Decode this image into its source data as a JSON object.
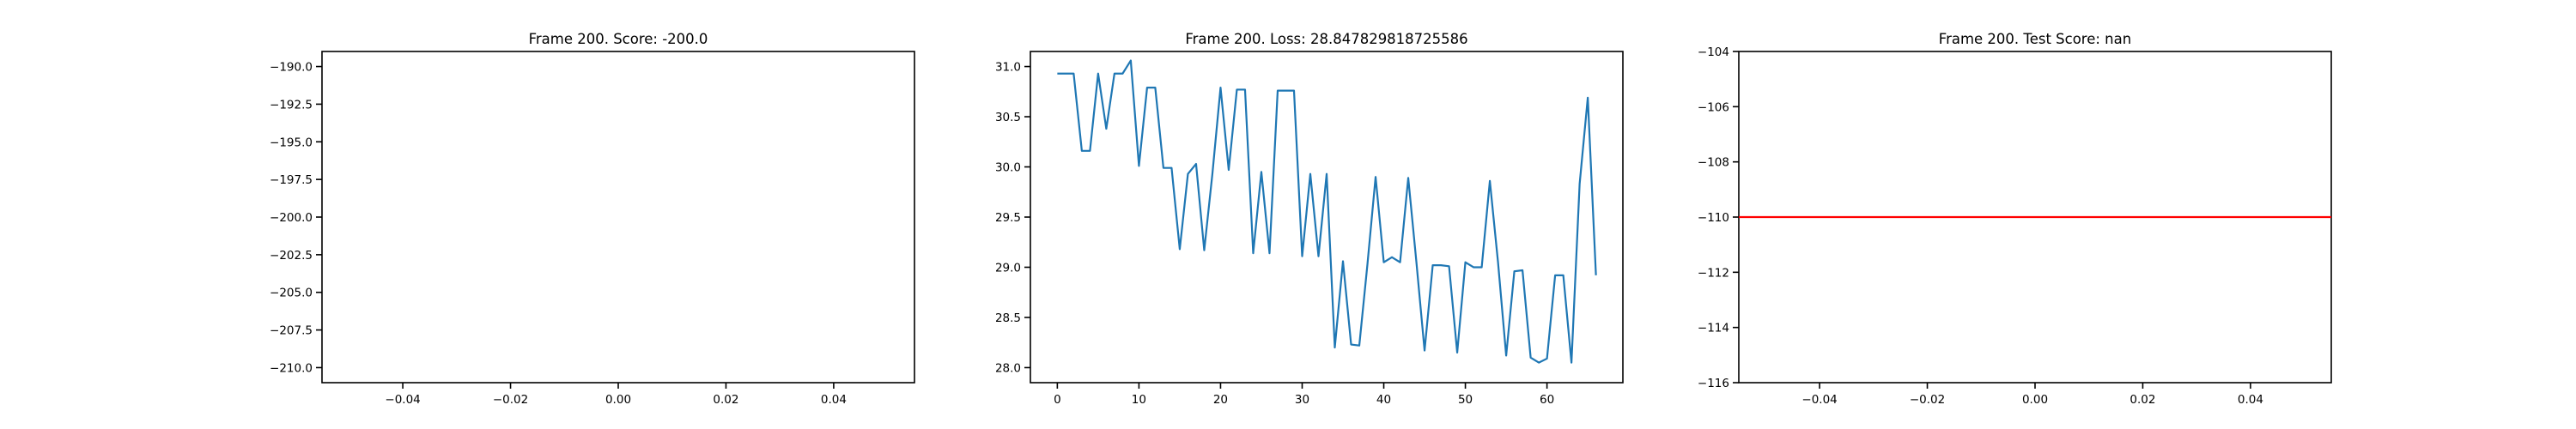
{
  "chart_data": [
    {
      "type": "line",
      "title": "Frame 200. Score: -200.0",
      "xlabel": "",
      "ylabel": "",
      "xlim": [
        -0.055,
        0.055
      ],
      "ylim": [
        -211.0,
        -189.0
      ],
      "x_ticks": [
        -0.04,
        -0.02,
        0.0,
        0.02,
        0.04
      ],
      "x_tick_labels": [
        "−0.04",
        "−0.02",
        "0.00",
        "0.02",
        "0.04"
      ],
      "y_ticks": [
        -190.0,
        -192.5,
        -195.0,
        -197.5,
        -200.0,
        -202.5,
        -205.0,
        -207.5,
        -210.0
      ],
      "y_tick_labels": [
        "−190.0",
        "−192.5",
        "−195.0",
        "−197.5",
        "−200.0",
        "−202.5",
        "−205.0",
        "−207.5",
        "−210.0"
      ],
      "series": [
        {
          "x": [],
          "y": [],
          "color": "#1f77b4"
        }
      ],
      "hlines": [],
      "grid": false
    },
    {
      "type": "line",
      "title": "Frame 200. Loss: 28.847829818725586",
      "xlabel": "",
      "ylabel": "",
      "xlim": [
        -3.3,
        69.3
      ],
      "ylim": [
        27.85,
        31.15
      ],
      "x_ticks": [
        0,
        10,
        20,
        30,
        40,
        50,
        60
      ],
      "x_tick_labels": [
        "0",
        "10",
        "20",
        "30",
        "40",
        "50",
        "60"
      ],
      "y_ticks": [
        31.0,
        30.5,
        30.0,
        29.5,
        29.0,
        28.5,
        28.0
      ],
      "y_tick_labels": [
        "31.0",
        "30.5",
        "30.0",
        "29.5",
        "29.0",
        "28.5",
        "28.0"
      ],
      "series": [
        {
          "x": [
            0,
            1,
            2,
            3,
            4,
            5,
            6,
            7,
            8,
            9,
            10,
            11,
            12,
            13,
            14,
            15,
            16,
            17,
            18,
            19,
            20,
            21,
            22,
            23,
            24,
            25,
            26,
            27,
            28,
            29,
            30,
            31,
            32,
            33,
            34,
            35,
            36,
            37,
            38,
            39,
            40,
            41,
            42,
            43,
            44,
            45,
            46,
            47,
            48,
            49,
            50,
            51,
            52,
            53,
            54,
            55,
            56,
            57,
            58,
            59,
            60,
            61,
            62,
            63,
            64,
            65,
            66
          ],
          "y": [
            30.93,
            30.93,
            30.93,
            30.16,
            30.16,
            30.93,
            30.38,
            30.93,
            30.93,
            31.06,
            30.01,
            30.79,
            30.79,
            29.99,
            29.99,
            29.18,
            29.93,
            30.03,
            29.17,
            29.93,
            30.79,
            29.97,
            30.77,
            30.77,
            29.14,
            29.95,
            29.14,
            30.76,
            30.76,
            30.76,
            29.11,
            29.93,
            29.11,
            29.93,
            28.2,
            29.06,
            28.23,
            28.22,
            29.03,
            29.9,
            29.05,
            29.1,
            29.05,
            29.89,
            29.05,
            28.17,
            29.02,
            29.02,
            29.01,
            28.15,
            29.05,
            29.0,
            29.0,
            29.86,
            29.05,
            28.12,
            28.96,
            28.97,
            28.1,
            28.05,
            28.09,
            28.92,
            28.92,
            28.05,
            29.83,
            30.69,
            28.92
          ],
          "color": "#1f77b4"
        }
      ],
      "hlines": [],
      "grid": false
    },
    {
      "type": "line",
      "title": "Frame 200. Test Score: nan",
      "xlabel": "",
      "ylabel": "",
      "xlim": [
        -0.055,
        0.055
      ],
      "ylim": [
        -116.0,
        -104.0
      ],
      "x_ticks": [
        -0.04,
        -0.02,
        0.0,
        0.02,
        0.04
      ],
      "x_tick_labels": [
        "−0.04",
        "−0.02",
        "0.00",
        "0.02",
        "0.04"
      ],
      "y_ticks": [
        -104,
        -106,
        -108,
        -110,
        -112,
        -114,
        -116
      ],
      "y_tick_labels": [
        "−104",
        "−106",
        "−108",
        "−110",
        "−112",
        "−114",
        "−116"
      ],
      "series": [
        {
          "x": [],
          "y": [],
          "color": "#1f77b4"
        }
      ],
      "hlines": [
        {
          "y": -110,
          "color": "#ff0000"
        }
      ],
      "grid": false
    }
  ]
}
